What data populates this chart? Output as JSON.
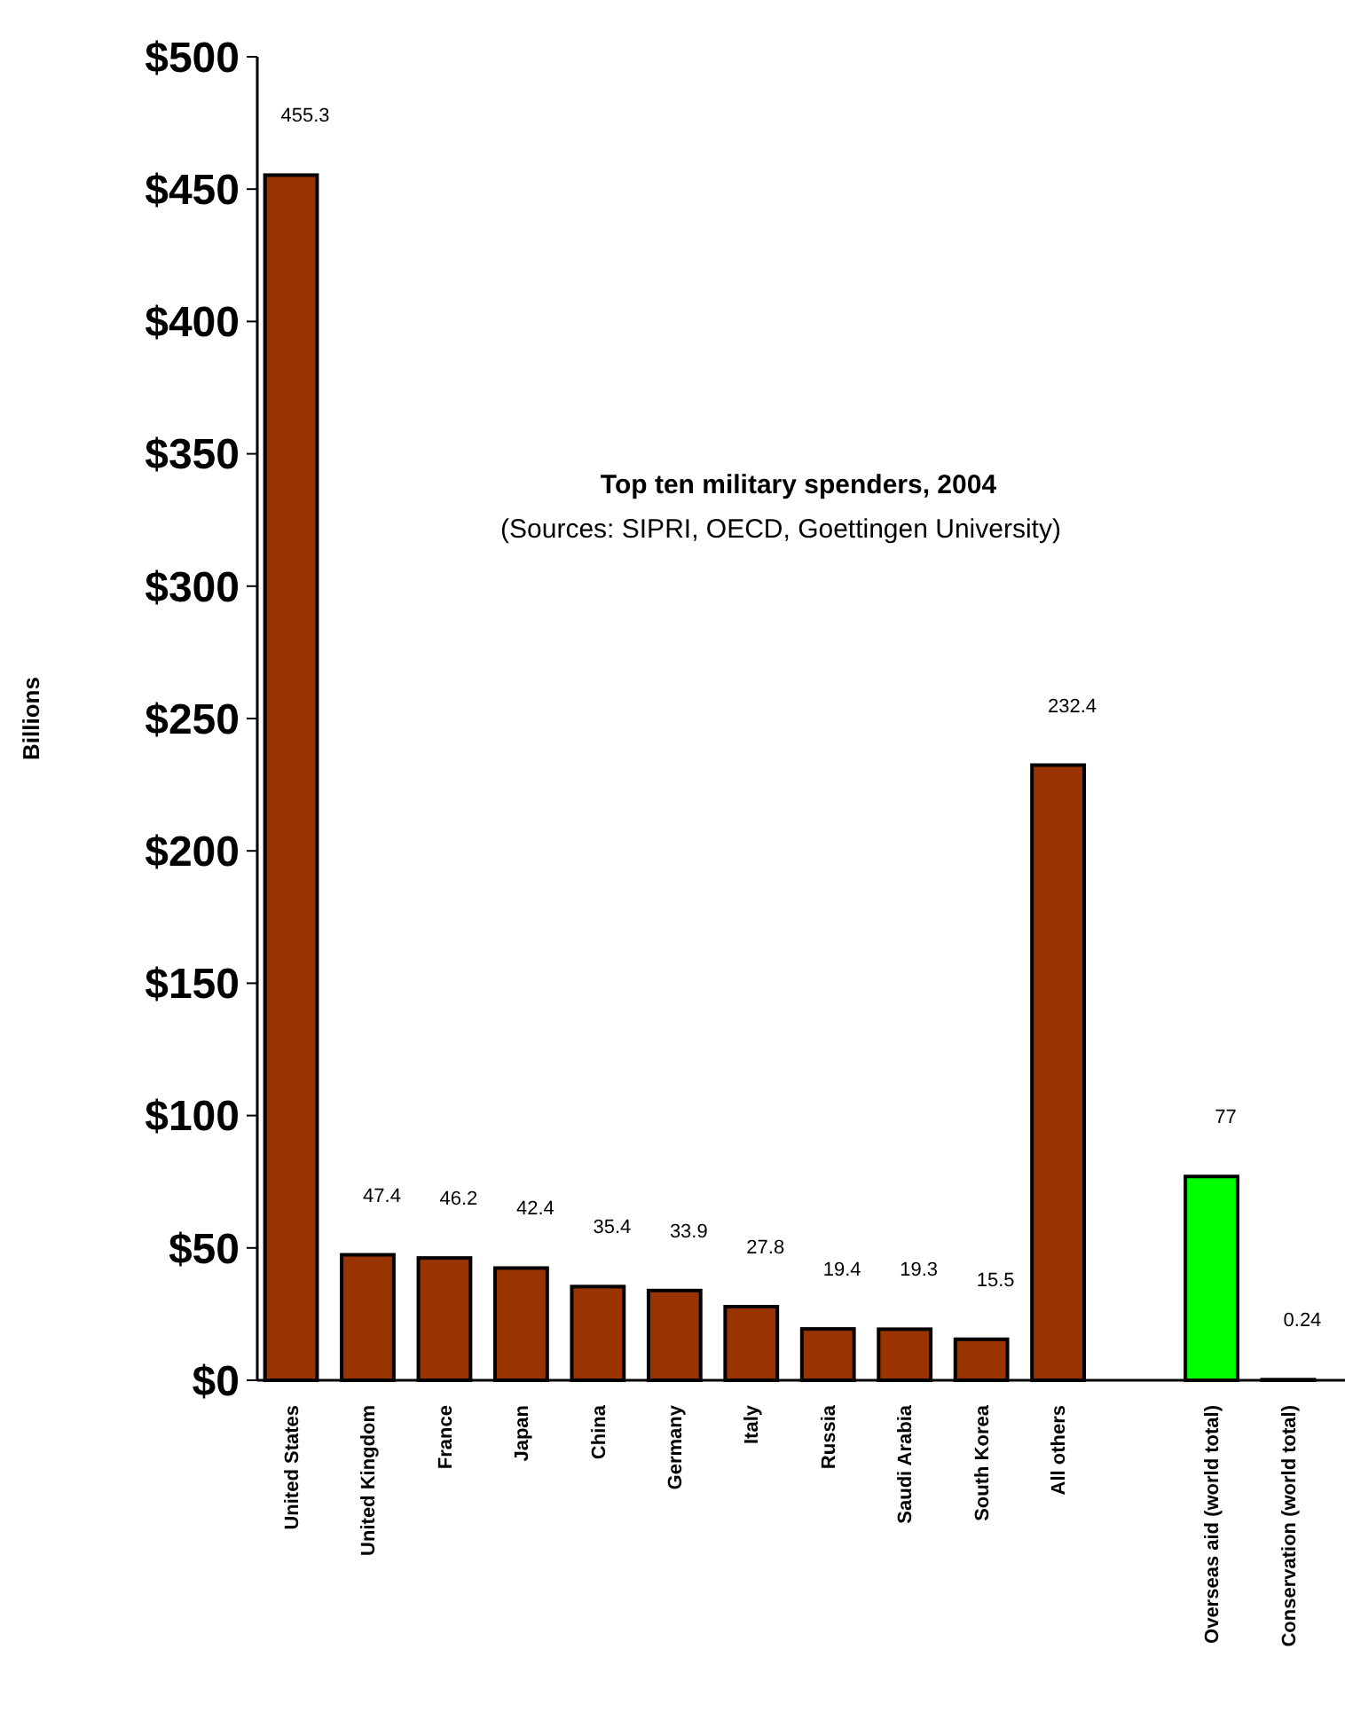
{
  "chart_data": {
    "type": "bar",
    "title": "Top ten military spenders, 2004",
    "subtitle": "(Sources: SIPRI, OECD, Goettingen University)",
    "ylabel": "Billions",
    "categories": [
      "United States",
      "United Kingdom",
      "France",
      "Japan",
      "China",
      "Germany",
      "Italy",
      "Russia",
      "Saudi Arabia",
      "South Korea",
      "All others",
      null,
      "Overseas aid (world total)",
      "Conservation (world total)"
    ],
    "values": [
      455.3,
      47.4,
      46.2,
      42.4,
      35.4,
      33.9,
      27.8,
      19.4,
      19.3,
      15.5,
      232.4,
      null,
      77,
      0.24
    ],
    "colors": [
      "#993300",
      "#993300",
      "#993300",
      "#993300",
      "#993300",
      "#993300",
      "#993300",
      "#993300",
      "#993300",
      "#993300",
      "#993300",
      null,
      "#00ff00",
      "#00ff00"
    ],
    "ylim": [
      0,
      500
    ],
    "yticks": [
      {
        "value": 0,
        "label": "$0"
      },
      {
        "value": 50,
        "label": "$50"
      },
      {
        "value": 100,
        "label": "$100"
      },
      {
        "value": 150,
        "label": "$150"
      },
      {
        "value": 200,
        "label": "$200"
      },
      {
        "value": 250,
        "label": "$250"
      },
      {
        "value": 300,
        "label": "$300"
      },
      {
        "value": 350,
        "label": "$350"
      },
      {
        "value": 400,
        "label": "$400"
      },
      {
        "value": 450,
        "label": "$450"
      },
      {
        "value": 500,
        "label": "$500"
      }
    ],
    "data_labels": true
  }
}
